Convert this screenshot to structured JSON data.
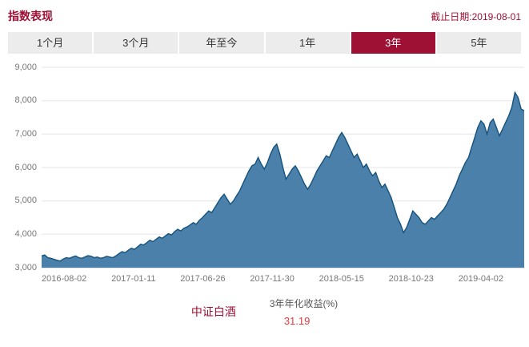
{
  "header": {
    "title": "指数表现",
    "date_label": "截止日期:2019-08-01"
  },
  "tabs": {
    "selected_index": 4,
    "items": [
      {
        "label": "1个月"
      },
      {
        "label": "3个月"
      },
      {
        "label": "年至今"
      },
      {
        "label": "1年"
      },
      {
        "label": "3年"
      },
      {
        "label": "5年"
      }
    ]
  },
  "chart_data": {
    "type": "area",
    "title": "",
    "series_name": "中证白酒",
    "ylim": [
      3000,
      9000
    ],
    "grid": true,
    "legend_position": "none",
    "y_tick_labels": [
      "9,000",
      "8,000",
      "7,000",
      "6,000",
      "5,000",
      "4,000",
      "3,000"
    ],
    "x_tick_labels": [
      "2016-08-02",
      "2017-01-11",
      "2017-06-26",
      "2017-11-30",
      "2018-05-15",
      "2018-10-23",
      "2019-04-02"
    ],
    "values": [
      3350,
      3380,
      3300,
      3280,
      3250,
      3220,
      3200,
      3260,
      3300,
      3280,
      3320,
      3350,
      3300,
      3280,
      3320,
      3360,
      3340,
      3300,
      3320,
      3280,
      3300,
      3340,
      3320,
      3300,
      3350,
      3420,
      3480,
      3450,
      3520,
      3580,
      3550,
      3620,
      3700,
      3680,
      3750,
      3820,
      3780,
      3850,
      3920,
      3880,
      3950,
      4020,
      3980,
      4080,
      4150,
      4100,
      4180,
      4220,
      4280,
      4350,
      4300,
      4420,
      4500,
      4600,
      4700,
      4650,
      4800,
      4950,
      5100,
      5200,
      5050,
      4900,
      5000,
      5150,
      5300,
      5500,
      5700,
      5900,
      6050,
      6100,
      6300,
      6100,
      5950,
      6150,
      6400,
      6600,
      6700,
      6400,
      6000,
      5650,
      5800,
      5950,
      6050,
      5900,
      5700,
      5500,
      5350,
      5500,
      5700,
      5900,
      6050,
      6200,
      6350,
      6300,
      6500,
      6700,
      6900,
      7050,
      6900,
      6700,
      6500,
      6300,
      6400,
      6200,
      6000,
      6100,
      5900,
      5750,
      5850,
      5600,
      5400,
      5500,
      5300,
      5100,
      4800,
      4500,
      4300,
      4050,
      4200,
      4450,
      4700,
      4600,
      4500,
      4350,
      4300,
      4400,
      4500,
      4450,
      4550,
      4650,
      4750,
      4900,
      5100,
      5300,
      5500,
      5750,
      5950,
      6150,
      6300,
      6600,
      6900,
      7200,
      7400,
      7300,
      7000,
      7350,
      7450,
      7200,
      6950,
      7150,
      7350,
      7550,
      7800,
      8250,
      8100,
      7750,
      7700
    ],
    "area_color": "#4a80aa",
    "line_color": "#15537e",
    "grid_color": "#e5e5e5",
    "baseline_color": "#c9c9c9"
  },
  "footer": {
    "index_name": "中证白酒",
    "return_label": "3年年化收益(%)",
    "return_value": "31.19"
  },
  "colors": {
    "brand_red": "#9e1034",
    "value_red": "#e4393c",
    "tab_bg": "#ececec",
    "text_gray": "#666666"
  }
}
